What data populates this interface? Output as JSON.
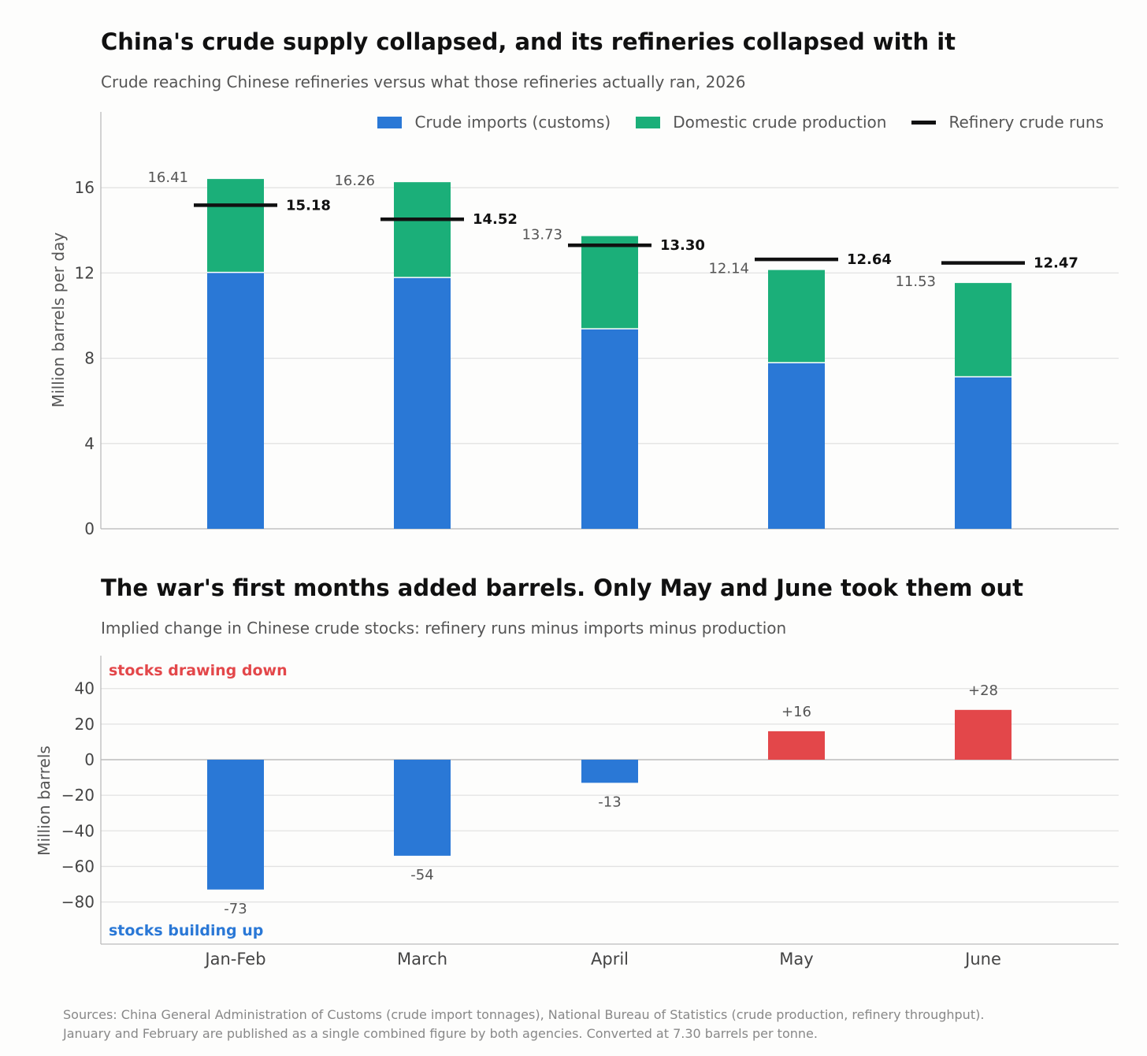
{
  "colors": {
    "imports": "#2a78d6",
    "production": "#1baf79",
    "runs": "#111111",
    "draw": "#e3474a",
    "build": "#2a78d6"
  },
  "chart_data": [
    {
      "type": "bar",
      "stacked": true,
      "title": "China's crude supply collapsed, and its refineries collapsed with it",
      "subtitle": "Crude reaching Chinese refineries versus what those refineries actually ran, 2026",
      "ylabel": "Million barrels per day",
      "ylim": [
        0,
        17.8
      ],
      "yticks": [
        "0",
        "4",
        "8",
        "12",
        "16"
      ],
      "categories": [
        "Jan-Feb",
        "March",
        "April",
        "May",
        "June"
      ],
      "series": [
        {
          "name": "Crude imports (customs)",
          "values": [
            12.03,
            11.79,
            9.38,
            7.79,
            7.13
          ]
        },
        {
          "name": "Domestic crude production",
          "values": [
            4.38,
            4.47,
            4.35,
            4.35,
            4.4
          ]
        }
      ],
      "totals": [
        16.41,
        16.26,
        13.73,
        12.14,
        11.53
      ],
      "total_labels": [
        "16.41",
        "16.26",
        "13.73",
        "12.14",
        "11.53"
      ],
      "runs": {
        "name": "Refinery crude runs",
        "values": [
          15.18,
          14.52,
          13.3,
          12.64,
          12.47
        ],
        "labels": [
          "15.18",
          "14.52",
          "13.30",
          "12.64",
          "12.47"
        ]
      },
      "legend_position": "top-right",
      "grid": true
    },
    {
      "type": "bar",
      "title": "The war's first months added barrels. Only May and June took them out",
      "subtitle": "Implied change in Chinese crude stocks: refinery runs minus imports minus production",
      "ylabel": "Million barrels",
      "ylim": [
        -104,
        58
      ],
      "yticks": [
        "40",
        "20",
        "0",
        "−20",
        "−40",
        "−60",
        "−80"
      ],
      "categories": [
        "Jan-Feb",
        "March",
        "April",
        "May",
        "June"
      ],
      "values": [
        -73,
        -54,
        -13,
        16,
        28
      ],
      "value_labels": [
        "-73",
        "-54",
        "-13",
        "+16",
        "+28"
      ],
      "annotations": {
        "top": "stocks drawing down",
        "bottom": "stocks building up"
      },
      "grid": true
    }
  ],
  "sources": {
    "line1": "Sources: China General Administration of Customs (crude import tonnages), National Bureau of Statistics (crude production, refinery throughput).",
    "line2": "January and February are published as a single combined figure by both agencies. Converted at 7.30 barrels per tonne."
  }
}
